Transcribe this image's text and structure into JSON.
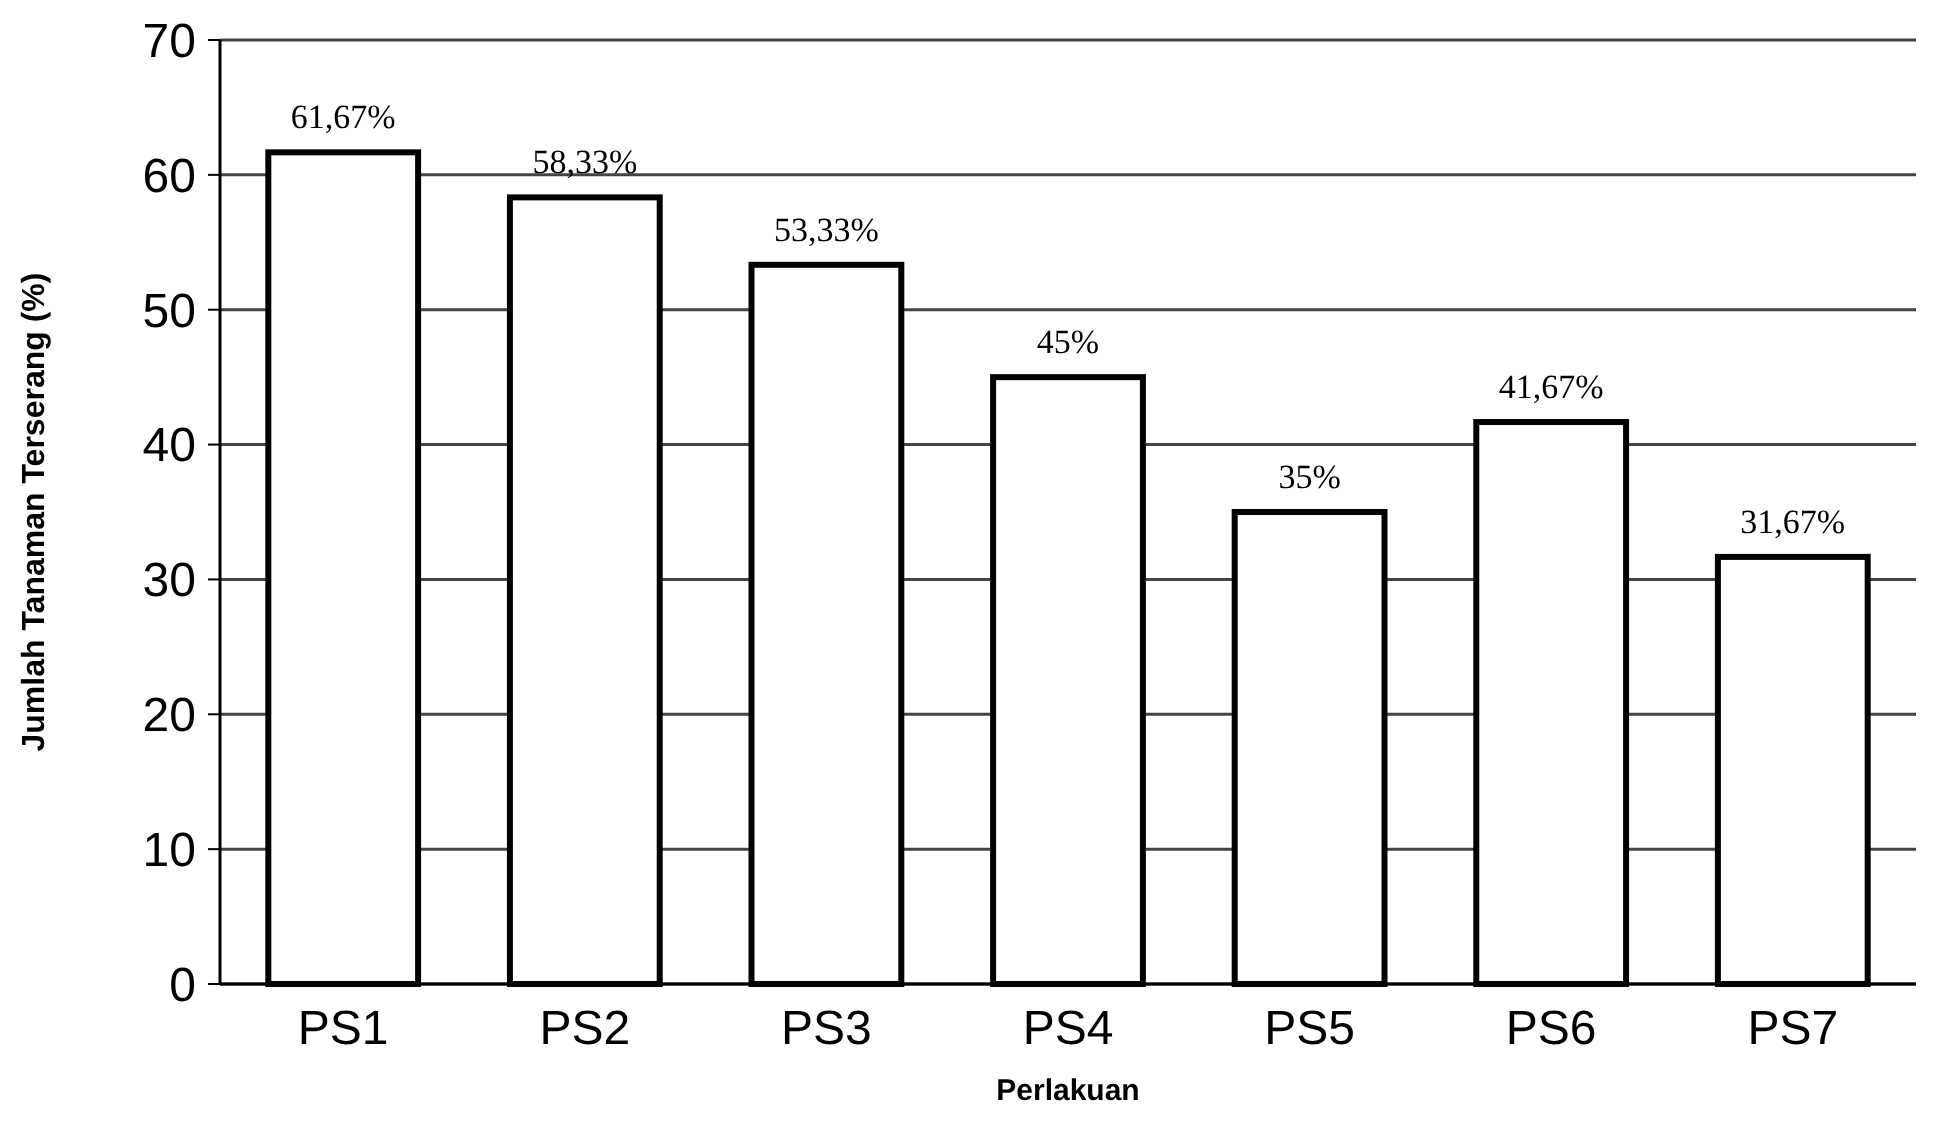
{
  "chart_data": {
    "type": "bar",
    "xlabel": "Perlakuan",
    "ylabel": "Jumlah Tanaman Terserang (%)",
    "categories": [
      "PS1",
      "PS2",
      "PS3",
      "PS4",
      "PS5",
      "PS6",
      "PS7"
    ],
    "values": [
      61.67,
      58.33,
      53.33,
      45,
      35,
      41.67,
      31.67
    ],
    "value_labels": [
      "61,67%",
      "58,33%",
      "53,33%",
      "45%",
      "35%",
      "41,67%",
      "31,67%"
    ],
    "color": "#ffffff",
    "ylim": [
      0,
      70
    ],
    "yticks": [
      0,
      10,
      20,
      30,
      40,
      50,
      60,
      70
    ],
    "grid": "y"
  }
}
